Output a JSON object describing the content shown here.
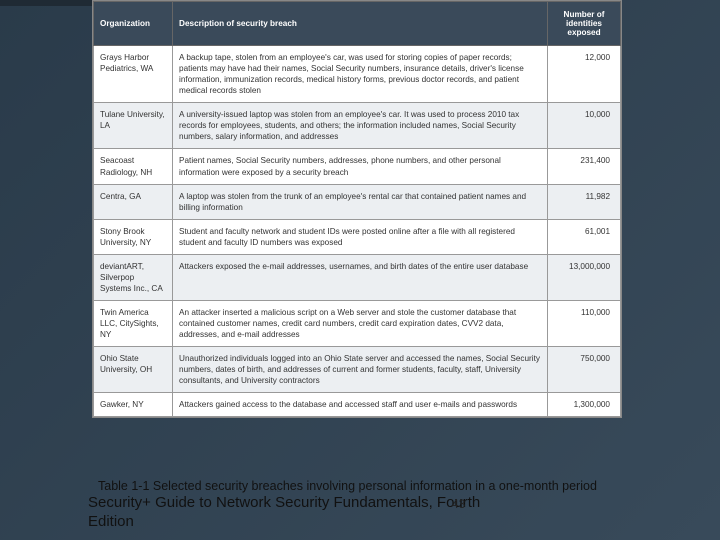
{
  "table": {
    "columns": [
      "Organization",
      "Description of security breach",
      "Number of identities exposed"
    ],
    "rows": [
      {
        "org": "Grays Harbor Pediatrics, WA",
        "desc": "A backup tape, stolen from an employee's car, was used for storing copies of paper records; patients may have had their names, Social Security numbers, insurance details, driver's license information, immunization records, medical history forms, previous doctor records, and patient medical records stolen",
        "num": "12,000",
        "alt": false
      },
      {
        "org": "Tulane University, LA",
        "desc": "A university-issued laptop was stolen from an employee's car. It was used to process 2010 tax records for employees, students, and others; the information included names, Social Security numbers, salary information, and addresses",
        "num": "10,000",
        "alt": true
      },
      {
        "org": "Seacoast Radiology, NH",
        "desc": "Patient names, Social Security numbers, addresses, phone numbers, and other personal information were exposed by a security breach",
        "num": "231,400",
        "alt": false
      },
      {
        "org": "Centra, GA",
        "desc": "A laptop was stolen from the trunk of an employee's rental car that contained patient names and billing information",
        "num": "11,982",
        "alt": true
      },
      {
        "org": "Stony Brook University, NY",
        "desc": "Student and faculty network and student IDs were posted online after a file with all registered student and faculty ID numbers was exposed",
        "num": "61,001",
        "alt": false
      },
      {
        "org": "deviantART, Silverpop Systems Inc., CA",
        "desc": "Attackers exposed the e-mail addresses, usernames, and birth dates of the entire user database",
        "num": "13,000,000",
        "alt": true
      },
      {
        "org": "Twin America LLC, CitySights, NY",
        "desc": "An attacker inserted a malicious script on a Web server and stole the customer database that contained customer names, credit card numbers, credit card expiration dates, CVV2 data, addresses, and e-mail addresses",
        "num": "110,000",
        "alt": false
      },
      {
        "org": "Ohio State University, OH",
        "desc": "Unauthorized individuals logged into an Ohio State server and accessed the names, Social Security numbers, dates of birth, and addresses of current and former students, faculty, staff, University consultants, and University contractors",
        "num": "750,000",
        "alt": true
      },
      {
        "org": "Gawker, NY",
        "desc": "Attackers gained access to the database and accessed staff and user e-mails and passwords",
        "num": "1,300,000",
        "alt": false
      }
    ]
  },
  "caption": "Table 1-1 Selected security breaches involving personal information in a one-month period",
  "footer_line1": "Security+ Guide to Network Security Fundamentals, Fourth",
  "footer_line2": "Edition",
  "page_number": "43"
}
